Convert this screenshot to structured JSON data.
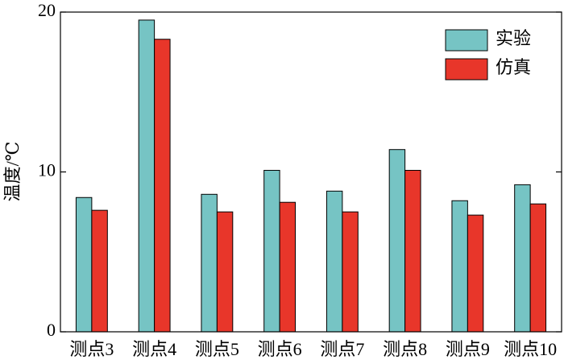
{
  "chart_data": {
    "type": "bar",
    "y_label": "温度/℃",
    "categories": [
      "测点3",
      "测点4",
      "测点5",
      "测点6",
      "测点7",
      "测点8",
      "测点9",
      "测点10"
    ],
    "series": [
      {
        "name": "实验",
        "color": "#76c4c4",
        "values": [
          8.4,
          19.5,
          8.6,
          10.1,
          8.8,
          11.4,
          8.2,
          9.2
        ]
      },
      {
        "name": "仿真",
        "color": "#e8362a",
        "values": [
          7.6,
          18.3,
          7.5,
          8.1,
          7.5,
          10.1,
          7.3,
          8.0
        ]
      }
    ],
    "ylim": [
      0,
      20
    ],
    "yticks": [
      0,
      10,
      20
    ],
    "legend": "upper-right"
  }
}
